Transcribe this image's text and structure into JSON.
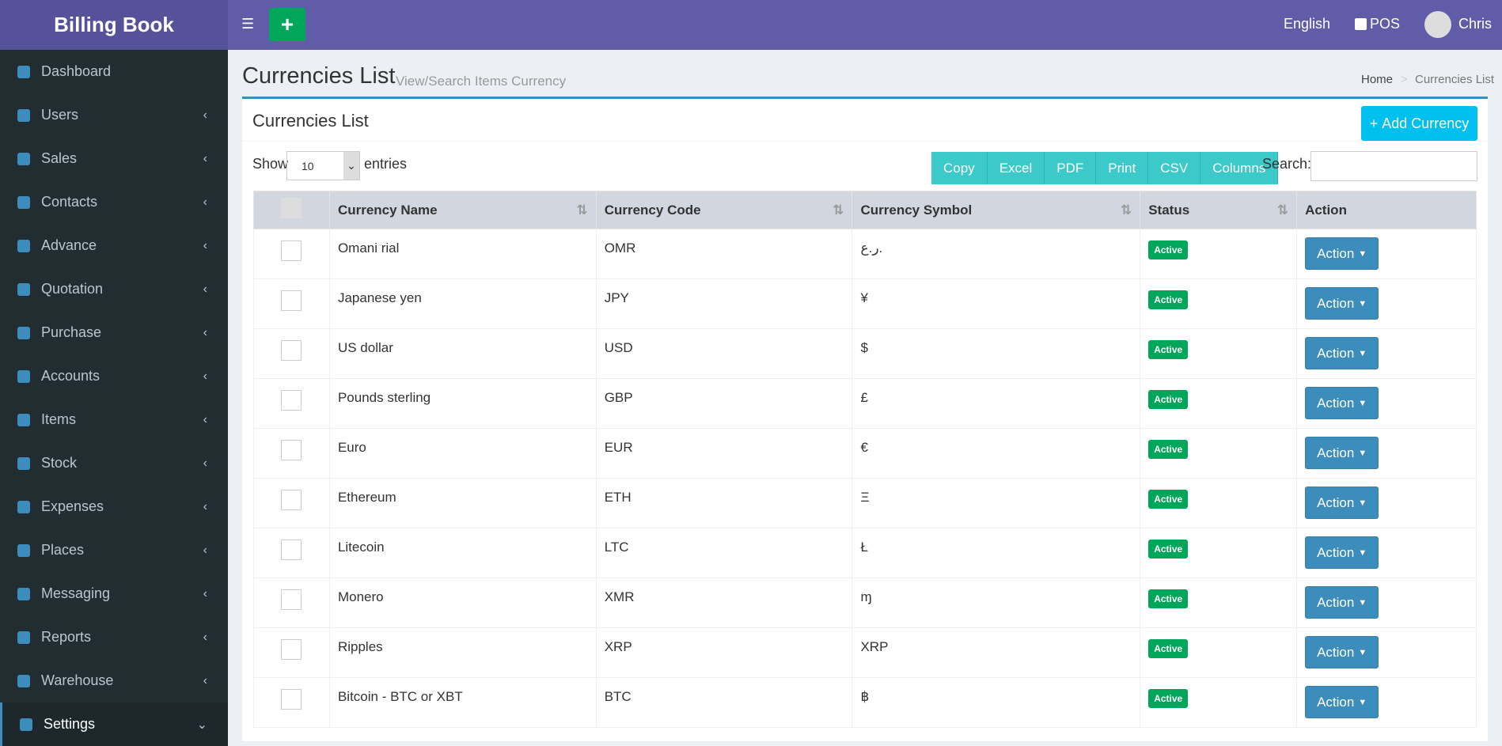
{
  "header": {
    "brand": "Billing Book",
    "language": "English",
    "pos": "POS",
    "user": "Chris"
  },
  "sidebar": [
    "Dashboard",
    "Users",
    "Sales",
    "Contacts",
    "Advance",
    "Quotation",
    "Purchase",
    "Accounts",
    "Items",
    "Stock",
    "Expenses",
    "Places",
    "Messaging",
    "Reports",
    "Warehouse",
    "Settings"
  ],
  "page": {
    "title": "Currencies List",
    "subtitle": "View/Search Items Currency",
    "breadcrumb": [
      "Home",
      "Currencies List"
    ]
  },
  "box": {
    "title": "Currencies List",
    "add_button": "Add Currency",
    "show": "Show",
    "length": "10",
    "entries": "entries",
    "export_buttons": [
      "Copy",
      "Excel",
      "PDF",
      "Print",
      "CSV",
      "Columns"
    ],
    "search": "Search:"
  },
  "table": {
    "columns": [
      "Currency Name",
      "Currency Code",
      "Currency Symbol",
      "Status",
      "Action"
    ],
    "rows": [
      [
        "Omani rial",
        "OMR",
        "ر.ع.",
        "Active",
        "Action"
      ],
      [
        "Japanese yen",
        "JPY",
        "¥",
        "Active",
        "Action"
      ],
      [
        "US dollar",
        "USD",
        "$",
        "Active",
        "Action"
      ],
      [
        "Pounds sterling",
        "GBP",
        "£",
        "Active",
        "Action"
      ],
      [
        "Euro",
        "EUR",
        "€",
        "Active",
        "Action"
      ],
      [
        "Ethereum",
        "ETH",
        "Ξ",
        "Active",
        "Action"
      ],
      [
        "Litecoin",
        "LTC",
        "Ł",
        "Active",
        "Action"
      ],
      [
        "Monero",
        "XMR",
        "ɱ",
        "Active",
        "Action"
      ],
      [
        "Ripples",
        "XRP",
        "XRP",
        "Active",
        "Action"
      ],
      [
        "Bitcoin - BTC or XBT",
        "BTC",
        "฿",
        "Active",
        "Action"
      ]
    ]
  }
}
